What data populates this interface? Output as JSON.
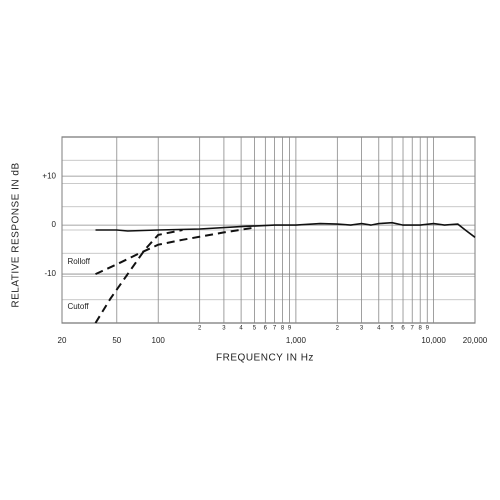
{
  "chart_data": {
    "type": "line",
    "xlabel": "FREQUENCY IN Hz",
    "ylabel": "RELATIVE RESPONSE IN dB",
    "xscale": "log",
    "grid": true,
    "xlim": [
      20,
      20000
    ],
    "ylim": [
      -20,
      18
    ],
    "xticks": [
      20,
      50,
      100,
      {
        "value": 200,
        "label": "2"
      },
      {
        "value": 300,
        "label": "3"
      },
      {
        "value": 400,
        "label": "4"
      },
      {
        "value": 500,
        "label": "5"
      },
      {
        "value": 600,
        "label": "6"
      },
      {
        "value": 700,
        "label": "7"
      },
      {
        "value": 800,
        "label": "8"
      },
      {
        "value": 900,
        "label": "9"
      },
      {
        "value": 1000,
        "label": "1,000"
      },
      {
        "value": 2000,
        "label": "2"
      },
      {
        "value": 3000,
        "label": "3"
      },
      {
        "value": 4000,
        "label": "4"
      },
      {
        "value": 5000,
        "label": "5"
      },
      {
        "value": 6000,
        "label": "6"
      },
      {
        "value": 7000,
        "label": "7"
      },
      {
        "value": 8000,
        "label": "8"
      },
      {
        "value": 9000,
        "label": "9"
      },
      {
        "value": 10000,
        "label": "10,000"
      },
      {
        "value": 20000,
        "label": "20,000"
      }
    ],
    "yticks": [
      {
        "value": 10,
        "label": "+10"
      },
      0,
      -10
    ],
    "series": [
      {
        "color": "#111",
        "dashed": false,
        "x": [
          35,
          50,
          60,
          100,
          200,
          400,
          700,
          1000,
          1500,
          2000,
          2500,
          3000,
          3500,
          4000,
          5000,
          6000,
          8000,
          10000,
          12000,
          15000,
          17000,
          20000
        ],
        "values": [
          -1,
          -1,
          -1.2,
          -1,
          -0.8,
          -0.3,
          0,
          0,
          0.3,
          0.2,
          0,
          0.3,
          0,
          0.3,
          0.5,
          0,
          0,
          0.3,
          0,
          0.2,
          -1,
          -2.5
        ]
      },
      {
        "name": "Rolloff",
        "color": "#111",
        "dashed": true,
        "x": [
          35,
          50,
          70,
          100,
          150,
          300,
          500
        ],
        "values": [
          -10,
          -8,
          -6,
          -4,
          -3,
          -1.5,
          -0.5
        ]
      },
      {
        "name": "Cutoff",
        "color": "#111",
        "dashed": true,
        "x": [
          35,
          45,
          60,
          80,
          100,
          150
        ],
        "values": [
          -20,
          -15,
          -10,
          -5,
          -2,
          -1
        ]
      }
    ]
  }
}
